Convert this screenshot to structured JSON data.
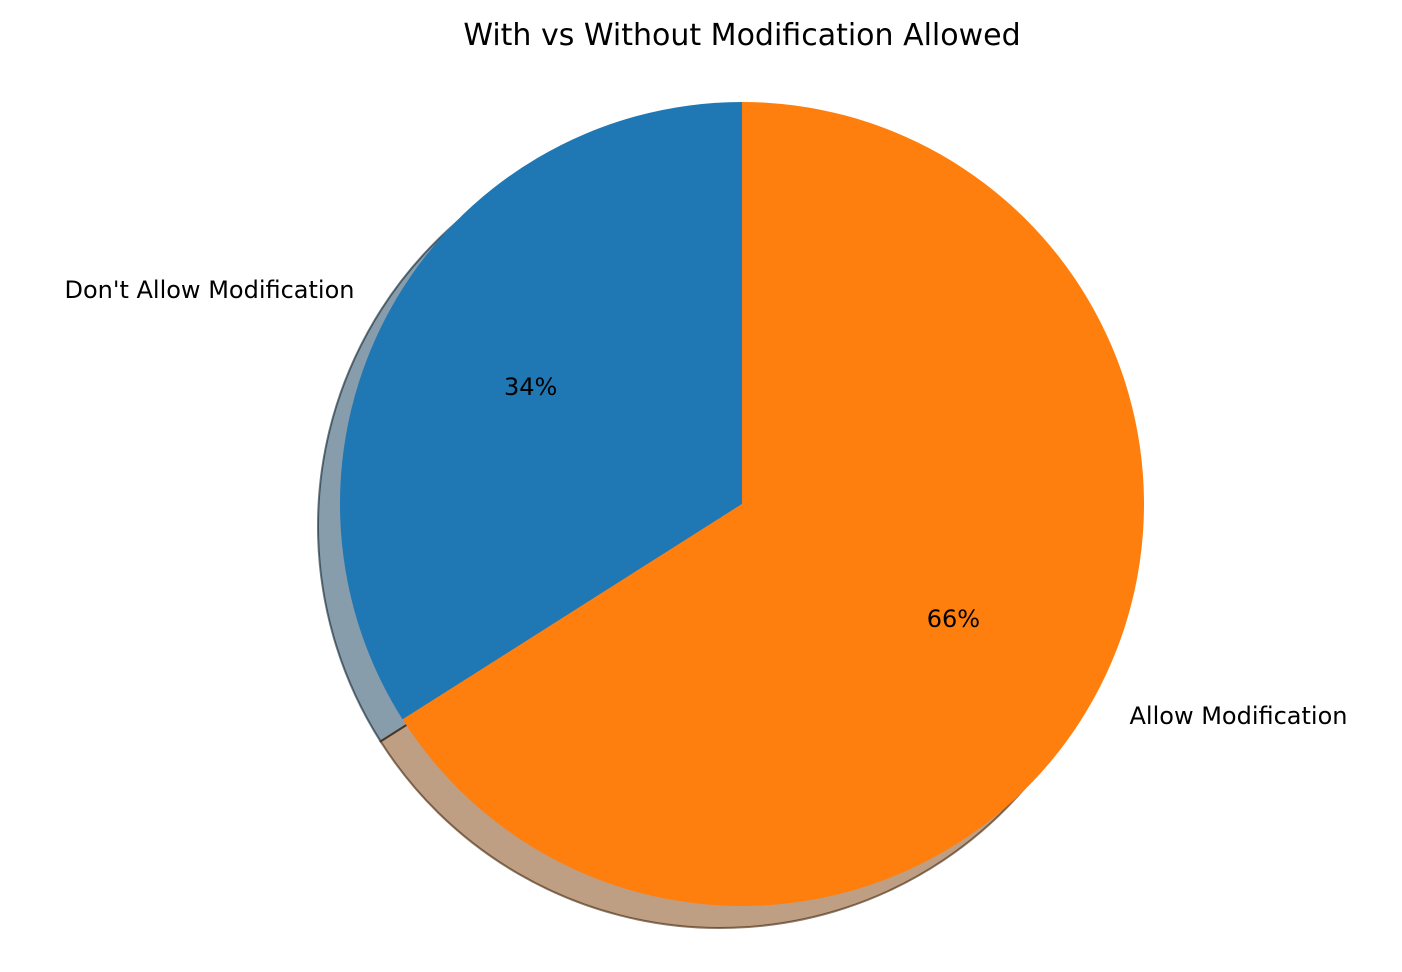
{
  "chart_data": {
    "type": "pie",
    "title": "With vs Without Modification Allowed",
    "slices": [
      {
        "label": "Don't Allow Modification",
        "value": 34,
        "pct_label": "34%",
        "color": "#1f77b4"
      },
      {
        "label": "Allow Modification",
        "value": 66,
        "pct_label": "66%",
        "color": "#ff7f0e"
      }
    ],
    "start_angle_deg": 90,
    "direction": "counterclockwise",
    "shadow": true,
    "explode": [
      0,
      0
    ]
  }
}
